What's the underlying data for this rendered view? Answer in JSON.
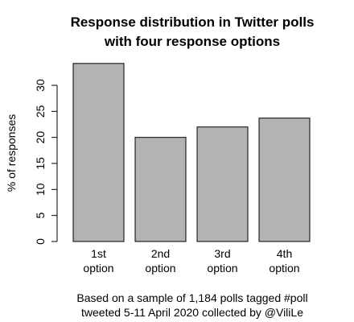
{
  "chart_data": {
    "type": "bar",
    "title": [
      "Response distribution in Twitter polls",
      "with four response options"
    ],
    "ylabel": "% of responses",
    "xlabel": "",
    "categories": [
      [
        "1st",
        "option"
      ],
      [
        "2nd",
        "option"
      ],
      [
        "3rd",
        "option"
      ],
      [
        "4th",
        "option"
      ]
    ],
    "values": [
      34.2,
      20.0,
      22.0,
      23.7
    ],
    "ylim": [
      0,
      35
    ],
    "yticks": [
      0,
      5,
      10,
      15,
      20,
      25,
      30
    ],
    "grid": false,
    "bar_color": "#b3b3b3",
    "caption": [
      "Based on a sample of 1,184 polls tagged #poll",
      "tweeted 5-11 April 2020 collected by @ViliLe"
    ]
  }
}
